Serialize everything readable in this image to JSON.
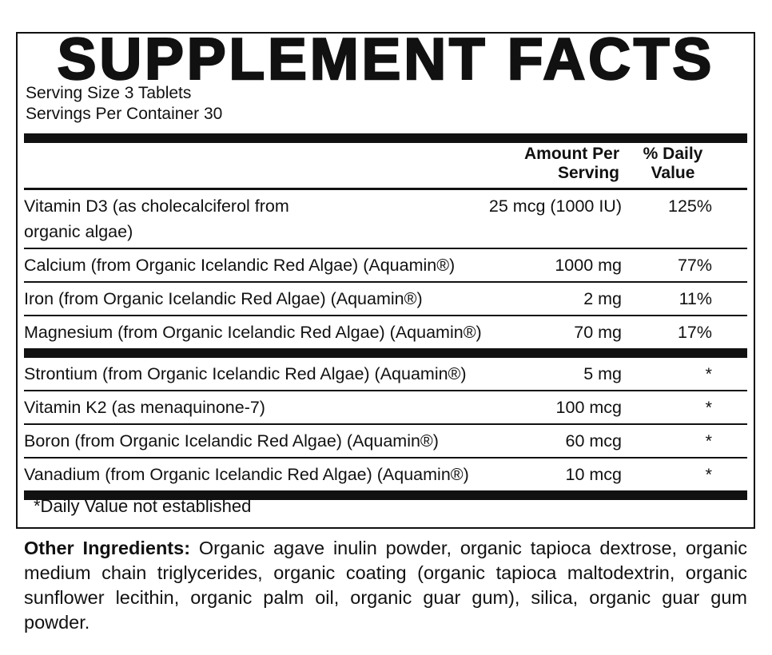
{
  "label": {
    "title": "SUPPLEMENT FACTS",
    "serving_size": "Serving Size 3 Tablets",
    "servings_per_container": "Servings Per Container 30",
    "header": {
      "amount": "Amount Per Serving",
      "daily_value": "% Daily Value"
    },
    "sections": [
      {
        "rows": [
          {
            "name": "Vitamin D3 (as cholecalciferol from organic algae)",
            "amount": "25 mcg (1000 IU)",
            "daily_value": "125%"
          },
          {
            "name": "Calcium (from Organic Icelandic Red Algae) (Aquamin®)",
            "amount": "1000 mg",
            "daily_value": "77%"
          },
          {
            "name": "Iron (from Organic Icelandic Red Algae) (Aquamin®)",
            "amount": "2 mg",
            "daily_value": "11%"
          },
          {
            "name": "Magnesium (from Organic Icelandic Red Algae) (Aquamin®)",
            "amount": "70 mg",
            "daily_value": "17%"
          }
        ]
      },
      {
        "rows": [
          {
            "name": "Strontium (from Organic Icelandic Red Algae) (Aquamin®)",
            "amount": "5 mg",
            "daily_value": "*"
          },
          {
            "name": "Vitamin K2 (as menaquinone-7)",
            "amount": "100 mcg",
            "daily_value": "*"
          },
          {
            "name": "Boron (from Organic Icelandic Red Algae) (Aquamin®)",
            "amount": "60 mcg",
            "daily_value": "*"
          },
          {
            "name": "Vanadium (from Organic Icelandic Red Algae) (Aquamin®)",
            "amount": "10 mcg",
            "daily_value": "*"
          }
        ]
      }
    ],
    "footnote": "*Daily Value not established",
    "other_ingredients": {
      "label": "Other Ingredients:",
      "text": "Organic agave inulin powder, organic tapioca dextrose, organic medium chain triglycerides, organic coating (organic tapioca maltodextrin, organic sunflower lecithin, organic palm oil, organic guar gum), silica, organic guar gum powder."
    }
  }
}
